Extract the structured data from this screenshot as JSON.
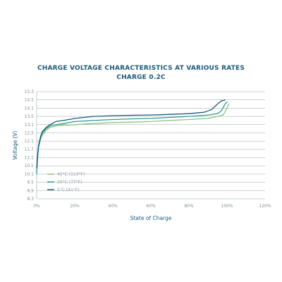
{
  "chart_data": {
    "type": "line",
    "title": "CHARGE VOLTAGE CHARACTERISTICS AT VARIOUS RATES",
    "subtitle": "CHARGE 0.2C",
    "xlabel": "State of Charge",
    "ylabel": "Voltage (V)",
    "xlim": [
      0,
      120
    ],
    "ylim": [
      8.3,
      15.3
    ],
    "x_ticks": [
      "0%",
      "20%",
      "40%",
      "60%",
      "80%",
      "100%",
      "120%"
    ],
    "y_ticks": [
      "8.3",
      "8.9",
      "9.5",
      "10.1",
      "10.5",
      "11.1",
      "11.7",
      "12.1",
      "12.5",
      "13.1",
      "13.5",
      "14.1",
      "14.5",
      "15.3"
    ],
    "grid": true,
    "legend_position": "bottom-left",
    "colors": {
      "title": "#1d5a78",
      "axis_label": "#1d5a78",
      "grid": "#9aa3a8",
      "tick": "#7e8f9a"
    },
    "series": [
      {
        "name": "45°C (113°F)",
        "color": "#8fc37a",
        "x": [
          0,
          0.5,
          1,
          2,
          3,
          5,
          7,
          10,
          14,
          20,
          30,
          40,
          50,
          60,
          70,
          80,
          90,
          95,
          98,
          100,
          101
        ],
        "y": [
          10.2,
          11.2,
          11.8,
          12.2,
          12.4,
          12.7,
          12.9,
          13.0,
          13.05,
          13.1,
          13.15,
          13.2,
          13.22,
          13.25,
          13.3,
          13.35,
          13.4,
          13.5,
          13.6,
          14.1,
          14.3
        ]
      },
      {
        "name": "25°C (77°F)",
        "color": "#2f9e97",
        "x": [
          0,
          0.5,
          1,
          2,
          3,
          5,
          7,
          10,
          14,
          20,
          30,
          40,
          50,
          60,
          70,
          80,
          90,
          95,
          97,
          99,
          100
        ],
        "y": [
          10.1,
          11.1,
          11.8,
          12.2,
          12.5,
          12.8,
          13.0,
          13.1,
          13.15,
          13.25,
          13.3,
          13.35,
          13.38,
          13.4,
          13.45,
          13.5,
          13.6,
          13.7,
          13.9,
          14.3,
          14.4
        ]
      },
      {
        "name": "5°C (41°F)",
        "color": "#1d5a78",
        "x": [
          0,
          0.5,
          1,
          2,
          3,
          5,
          7,
          10,
          14,
          20,
          30,
          40,
          50,
          60,
          70,
          80,
          88,
          92,
          95,
          97,
          99
        ],
        "y": [
          10.4,
          11.3,
          11.9,
          12.3,
          12.6,
          12.9,
          13.1,
          13.25,
          13.3,
          13.4,
          13.5,
          13.55,
          13.58,
          13.6,
          13.65,
          13.7,
          13.8,
          14.0,
          14.3,
          14.45,
          14.5
        ]
      }
    ]
  }
}
